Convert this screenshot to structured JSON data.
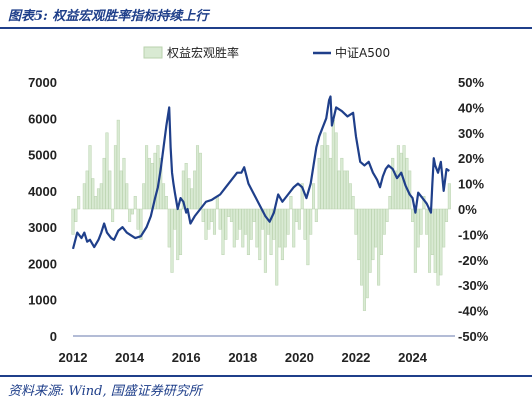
{
  "header": {
    "title": "图表5:  权益宏观胜率指标持续上行",
    "source": "资料来源:  Wind,  国盛证券研究所"
  },
  "colors": {
    "line": "#1f3f8a",
    "bar_fill": "#d9ead3",
    "bar_stroke": "#b9d2ae",
    "rule": "#1f3f8a"
  },
  "chart_data": {
    "type": "bar+line",
    "title": "",
    "legend_position": "top",
    "grid": false,
    "x_ticks": [
      "2012",
      "2014",
      "2016",
      "2018",
      "2020",
      "2022",
      "2024"
    ],
    "xlim": [
      2012,
      2025.5
    ],
    "left_axis": {
      "ticks": [
        "0",
        "1000",
        "2000",
        "3000",
        "4000",
        "5000",
        "6000",
        "7000"
      ],
      "ylim": [
        0,
        7000
      ]
    },
    "right_axis": {
      "ticks": [
        "50%",
        "40%",
        "30%",
        "20%",
        "10%",
        "0%",
        "-10%",
        "-20%",
        "-30%",
        "-40%",
        "-50%"
      ],
      "ylim": [
        -50,
        50
      ]
    },
    "series": [
      {
        "name": "权益宏观胜率",
        "type": "bar",
        "axis": "right",
        "x": [
          2012.0,
          2012.1,
          2012.2,
          2012.3,
          2012.4,
          2012.5,
          2012.6,
          2012.7,
          2012.8,
          2012.9,
          2013.0,
          2013.1,
          2013.2,
          2013.3,
          2013.4,
          2013.5,
          2013.6,
          2013.7,
          2013.8,
          2013.9,
          2014.0,
          2014.1,
          2014.2,
          2014.3,
          2014.4,
          2014.5,
          2014.6,
          2014.7,
          2014.8,
          2014.9,
          2015.0,
          2015.1,
          2015.2,
          2015.3,
          2015.4,
          2015.5,
          2015.6,
          2015.7,
          2015.8,
          2015.9,
          2016.0,
          2016.1,
          2016.2,
          2016.3,
          2016.4,
          2016.5,
          2016.6,
          2016.7,
          2016.8,
          2016.9,
          2017.0,
          2017.1,
          2017.2,
          2017.3,
          2017.4,
          2017.5,
          2017.6,
          2017.7,
          2017.8,
          2017.9,
          2018.0,
          2018.1,
          2018.2,
          2018.3,
          2018.4,
          2018.5,
          2018.6,
          2018.7,
          2018.8,
          2018.9,
          2019.0,
          2019.1,
          2019.2,
          2019.3,
          2019.4,
          2019.5,
          2019.6,
          2019.7,
          2019.8,
          2019.9,
          2020.0,
          2020.1,
          2020.2,
          2020.3,
          2020.4,
          2020.5,
          2020.6,
          2020.7,
          2020.8,
          2020.9,
          2021.0,
          2021.1,
          2021.2,
          2021.3,
          2021.4,
          2021.5,
          2021.6,
          2021.7,
          2021.8,
          2021.9,
          2022.0,
          2022.1,
          2022.2,
          2022.3,
          2022.4,
          2022.5,
          2022.6,
          2022.7,
          2022.8,
          2022.9,
          2023.0,
          2023.1,
          2023.2,
          2023.3,
          2023.4,
          2023.5,
          2023.6,
          2023.7,
          2023.8,
          2023.9,
          2024.0,
          2024.1,
          2024.2,
          2024.3,
          2024.4,
          2024.5,
          2024.6,
          2024.7,
          2024.8,
          2024.9,
          2025.0,
          2025.1,
          2025.2,
          2025.3
        ],
        "values": [
          -10,
          -5,
          5,
          0,
          10,
          15,
          25,
          12,
          5,
          8,
          10,
          20,
          30,
          15,
          -5,
          25,
          35,
          15,
          20,
          10,
          -5,
          -2,
          5,
          -8,
          -12,
          10,
          25,
          20,
          18,
          22,
          25,
          20,
          10,
          5,
          -15,
          -25,
          -8,
          -20,
          -18,
          15,
          18,
          12,
          8,
          15,
          25,
          22,
          -5,
          -12,
          -8,
          -5,
          -10,
          5,
          -8,
          -18,
          -12,
          -3,
          -5,
          -15,
          -12,
          -8,
          -15,
          -10,
          -18,
          -12,
          -5,
          -15,
          -20,
          -8,
          -25,
          -10,
          -18,
          -12,
          -30,
          -15,
          -20,
          -15,
          -10,
          5,
          -15,
          -5,
          -8,
          10,
          -12,
          -22,
          -10,
          10,
          -5,
          20,
          25,
          30,
          25,
          20,
          35,
          30,
          15,
          20,
          15,
          15,
          10,
          5,
          -10,
          -20,
          -30,
          -40,
          -35,
          -25,
          -20,
          -15,
          -30,
          -18,
          -10,
          -5,
          5,
          20,
          15,
          25,
          22,
          25,
          20,
          15,
          -5,
          -25,
          -15,
          -10,
          5,
          -10,
          -25,
          -18,
          -25,
          -30,
          -26,
          -15,
          -5,
          10
        ]
      },
      {
        "name": "中证A500",
        "type": "line",
        "axis": "left",
        "x": [
          2012.0,
          2012.05,
          2012.15,
          2012.3,
          2012.4,
          2012.5,
          2012.6,
          2012.75,
          2012.9,
          2013.0,
          2013.1,
          2013.2,
          2013.35,
          2013.45,
          2013.6,
          2013.75,
          2013.9,
          2014.0,
          2014.2,
          2014.4,
          2014.6,
          2014.75,
          2014.9,
          2015.0,
          2015.1,
          2015.2,
          2015.3,
          2015.4,
          2015.45,
          2015.5,
          2015.55,
          2015.6,
          2015.7,
          2015.8,
          2015.9,
          2016.0,
          2016.05,
          2016.15,
          2016.3,
          2016.5,
          2016.7,
          2016.9,
          2017.0,
          2017.2,
          2017.4,
          2017.6,
          2017.8,
          2017.95,
          2018.05,
          2018.2,
          2018.4,
          2018.6,
          2018.8,
          2018.95,
          2019.1,
          2019.25,
          2019.4,
          2019.6,
          2019.8,
          2019.95,
          2020.1,
          2020.25,
          2020.4,
          2020.5,
          2020.6,
          2020.7,
          2020.8,
          2020.95,
          2021.05,
          2021.1,
          2021.15,
          2021.3,
          2021.5,
          2021.7,
          2021.9,
          2022.0,
          2022.15,
          2022.3,
          2022.45,
          2022.6,
          2022.75,
          2022.85,
          2022.95,
          2023.05,
          2023.15,
          2023.3,
          2023.45,
          2023.6,
          2023.75,
          2023.9,
          2024.0,
          2024.1,
          2024.2,
          2024.35,
          2024.5,
          2024.65,
          2024.7,
          2024.75,
          2024.8,
          2024.9,
          2025.0,
          2025.1,
          2025.2,
          2025.3
        ],
        "values": [
          2400,
          2550,
          2850,
          2700,
          2850,
          2600,
          2650,
          2450,
          2650,
          2850,
          3100,
          2850,
          2700,
          2650,
          2900,
          3000,
          2850,
          2800,
          2700,
          2750,
          3000,
          3300,
          3800,
          4100,
          4600,
          5200,
          5800,
          6300,
          5200,
          4500,
          4200,
          3950,
          3500,
          3800,
          3700,
          3400,
          3500,
          3100,
          3300,
          3500,
          3700,
          3750,
          3800,
          3900,
          4100,
          4300,
          4500,
          4500,
          4650,
          4200,
          3900,
          3600,
          3300,
          3150,
          3400,
          3900,
          3700,
          3900,
          4100,
          4200,
          4100,
          3800,
          4200,
          4700,
          5200,
          5500,
          5700,
          6000,
          6500,
          6600,
          5800,
          6300,
          6200,
          6050,
          6150,
          5500,
          4800,
          4700,
          4800,
          4500,
          4300,
          4100,
          4400,
          4600,
          4700,
          4600,
          4350,
          4500,
          4150,
          3900,
          3800,
          3400,
          3950,
          3800,
          3650,
          3400,
          4200,
          4900,
          4700,
          4500,
          4800,
          4000,
          4600,
          4550
        ]
      }
    ]
  }
}
